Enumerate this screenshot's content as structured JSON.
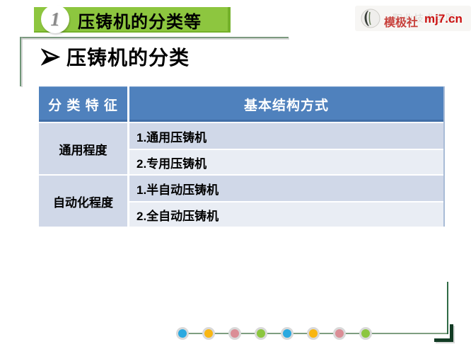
{
  "banner": {
    "number": "1",
    "title": "压铸机的分类等"
  },
  "logo": {
    "site_name": "模极社",
    "domain": "mj7.cn",
    "watermark": "职业技术学院"
  },
  "heading": {
    "title": "压铸机的分类"
  },
  "table": {
    "header": {
      "col1": "分 类 特 征",
      "col2": "基本结构方式"
    },
    "groups": [
      {
        "feature": "通用程度",
        "items": [
          "1.通用压铸机",
          "2.专用压铸机"
        ]
      },
      {
        "feature": "自动化程度",
        "items": [
          "1.半自动压铸机",
          "2.全自动压铸机"
        ]
      }
    ]
  },
  "footer": {
    "dot_colors": [
      "#2ba9e0",
      "#f9b612",
      "#db8e96",
      "#8cc63f",
      "#2ba9e0",
      "#f9b612",
      "#db8e96",
      "#8cc63f"
    ]
  },
  "colors": {
    "banner_green": "#8dc63f",
    "banner_green_dark": "#74b12a",
    "header_blue": "#4f81bd",
    "row_dark": "#d0d8e8",
    "row_light": "#e9edf4",
    "brand_red": "#cc1111",
    "timeline_line_green": "#7e9e80",
    "frame_green": "#7c997f",
    "corner_dark_green": "#123b24",
    "dot_blue": "#2ba9e0",
    "dot_yellow": "#f9b612",
    "dot_pink": "#db8e96",
    "dot_green": "#8cc63f"
  }
}
